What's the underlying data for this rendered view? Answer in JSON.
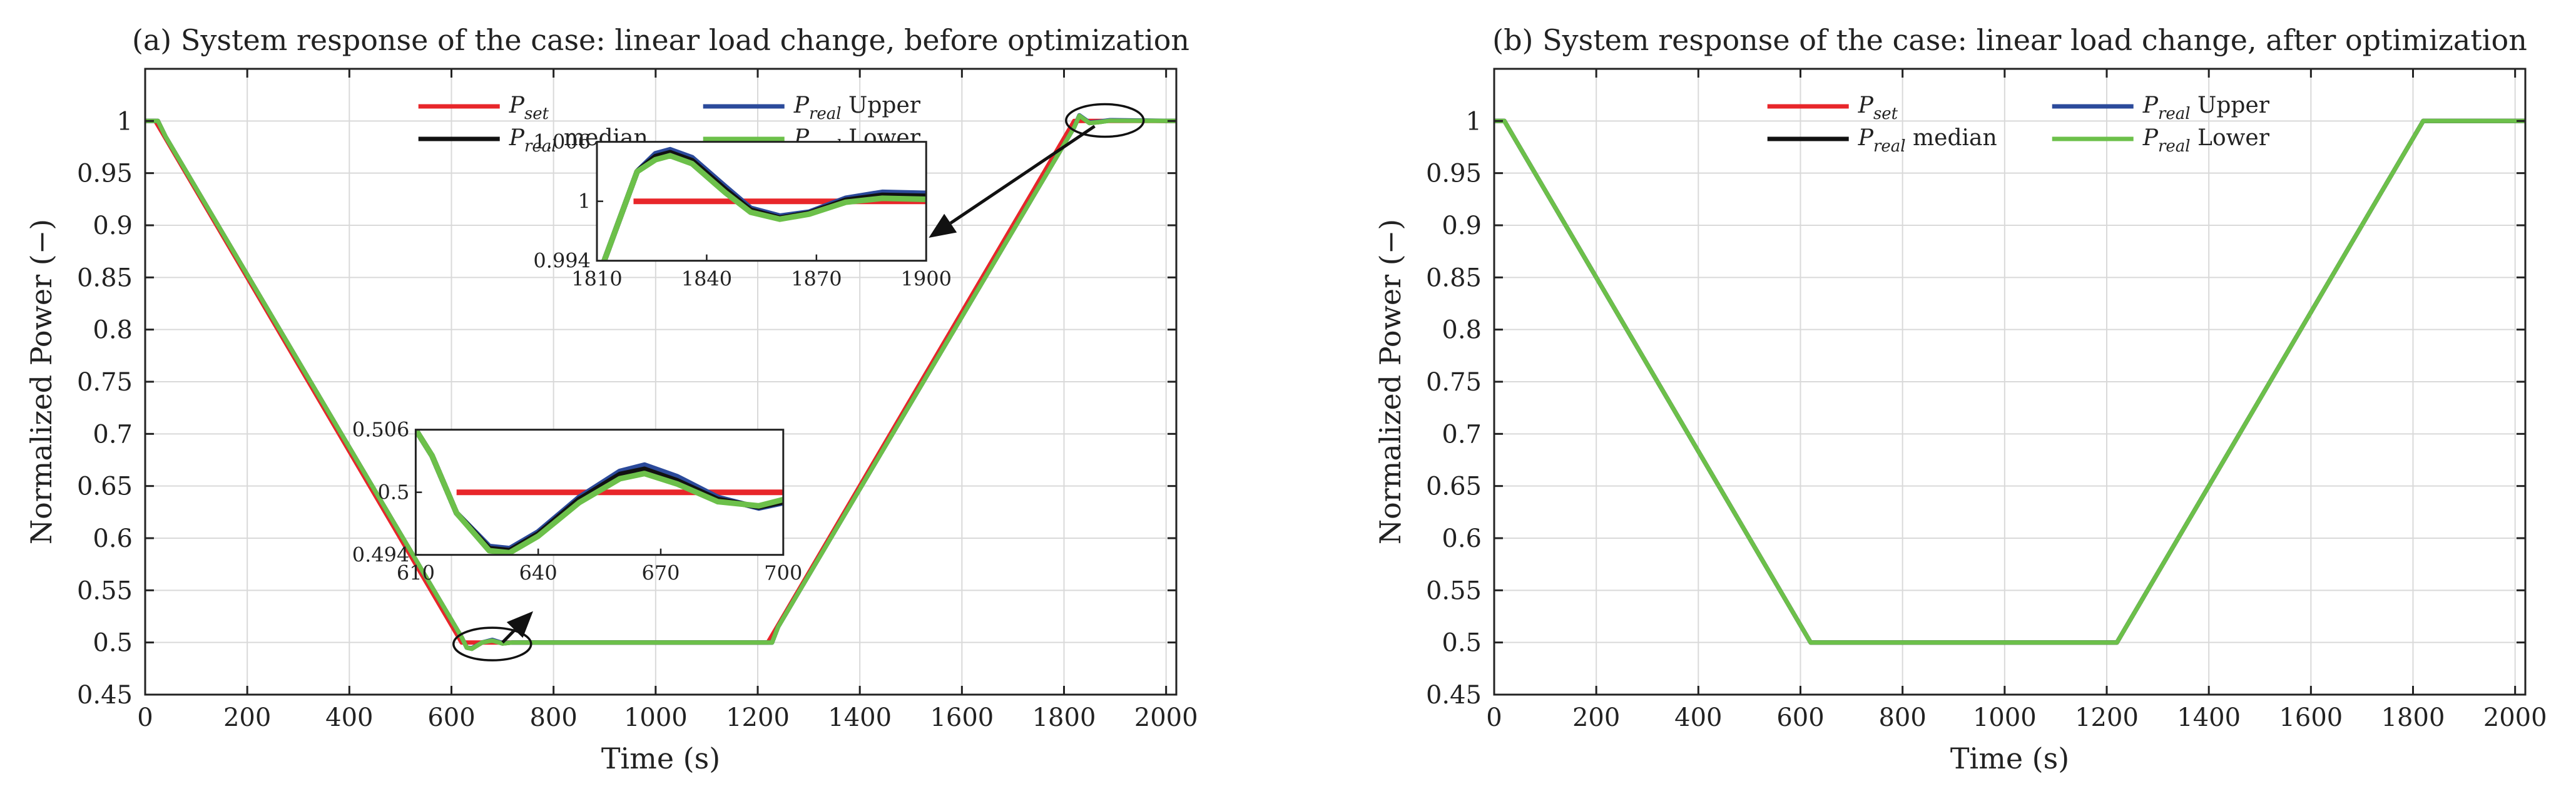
{
  "colors": {
    "set": "#e8262a",
    "median": "#111111",
    "upper": "#2b4a9b",
    "lower": "#6cc04a",
    "grid": "#d9d9d9"
  },
  "legend": {
    "set": {
      "sym": "P",
      "sub": "set",
      "suffix": ""
    },
    "upper": {
      "sym": "P",
      "sub": "real",
      "suffix": "Upper"
    },
    "median": {
      "sym": "P",
      "sub": "real",
      "suffix": "median"
    },
    "lower": {
      "sym": "P",
      "sub": "real",
      "suffix": "Lower"
    }
  },
  "chart_data": [
    {
      "id": "a",
      "type": "line",
      "title": "(a) System response of the case: linear load change, before optimization",
      "xlabel": "Time (s)",
      "ylabel": "Normalized Power (−)",
      "xlim": [
        0,
        2020
      ],
      "ylim": [
        0.45,
        1.05
      ],
      "xticks": [
        0,
        200,
        400,
        600,
        800,
        1000,
        1200,
        1400,
        1600,
        1800,
        2000
      ],
      "yticks": [
        0.45,
        0.5,
        0.55,
        0.6,
        0.65,
        0.7,
        0.75,
        0.8,
        0.85,
        0.9,
        0.95,
        1
      ],
      "grid": true,
      "legend_position": "top-center",
      "series": [
        {
          "name": "P_set",
          "color_key": "set",
          "x": [
            0,
            20,
            620,
            1220,
            1820,
            2020
          ],
          "y": [
            1,
            1,
            0.5,
            0.5,
            1,
            1
          ]
        },
        {
          "name": "P_real median",
          "color_key": "median",
          "x": [
            0,
            25,
            40,
            620,
            630,
            640,
            660,
            680,
            700,
            720,
            1220,
            1228,
            1240,
            1820,
            1830,
            1850,
            1870,
            1890,
            2020
          ],
          "y": [
            1,
            1,
            0.985,
            0.505,
            0.495,
            0.494,
            0.5,
            0.502,
            0.499,
            0.5,
            0.5,
            0.5,
            0.515,
            0.994,
            1.005,
            0.998,
            0.999,
            1.0005,
            1
          ]
        },
        {
          "name": "P_real Upper",
          "color_key": "upper",
          "x": [
            0,
            25,
            40,
            620,
            630,
            640,
            660,
            680,
            700,
            720,
            1220,
            1228,
            1240,
            1820,
            1830,
            1850,
            1870,
            1890,
            2020
          ],
          "y": [
            1,
            1,
            0.985,
            0.505,
            0.495,
            0.4945,
            0.5,
            0.5025,
            0.4995,
            0.5,
            0.5,
            0.5,
            0.515,
            0.994,
            1.0055,
            0.9985,
            0.9995,
            1.0008,
            1
          ]
        },
        {
          "name": "P_real Lower",
          "color_key": "lower",
          "x": [
            0,
            25,
            40,
            620,
            630,
            640,
            660,
            680,
            700,
            720,
            1220,
            1228,
            1240,
            1820,
            1830,
            1850,
            1870,
            1890,
            2020
          ],
          "y": [
            1,
            1,
            0.985,
            0.505,
            0.495,
            0.494,
            0.5,
            0.5018,
            0.499,
            0.5,
            0.5,
            0.5,
            0.515,
            0.994,
            1.005,
            0.998,
            0.999,
            1.0003,
            1
          ]
        }
      ],
      "annotations": [
        {
          "type": "ellipse",
          "cx": 680,
          "cy": 0.4985
        },
        {
          "type": "ellipse",
          "cx": 1880,
          "cy": 1.0005
        },
        {
          "type": "arrow",
          "from": [
            700,
            0.5
          ],
          "to": [
            760,
            0.53
          ]
        },
        {
          "type": "arrow",
          "from": [
            1860,
            0.995
          ],
          "to": [
            1535,
            0.888
          ]
        }
      ],
      "insets": [
        {
          "id": "inset-lower",
          "anchor_data": [
            530,
            0.704
          ],
          "anchor_end": [
            1250,
            0.584
          ],
          "xlim": [
            610,
            700
          ],
          "ylim": [
            0.494,
            0.506
          ],
          "xticks": [
            610,
            640,
            670,
            700
          ],
          "yticks": [
            0.494,
            0.5,
            0.506
          ],
          "ytick_labels": [
            "0.494",
            "0.5",
            "0.506"
          ],
          "series": [
            {
              "color_key": "set",
              "x": [
                620,
                700
              ],
              "y": [
                0.5,
                0.5
              ]
            },
            {
              "color_key": "upper",
              "x": [
                610,
                614,
                620,
                628,
                633,
                640,
                650,
                660,
                666,
                674,
                684,
                694,
                700
              ],
              "y": [
                0.506,
                0.5035,
                0.498,
                0.4948,
                0.4946,
                0.4962,
                0.4995,
                0.502,
                0.5026,
                0.5015,
                0.4995,
                0.4985,
                0.499
              ]
            },
            {
              "color_key": "median",
              "x": [
                610,
                614,
                620,
                628,
                633,
                640,
                650,
                660,
                666,
                674,
                684,
                694,
                700
              ],
              "y": [
                0.506,
                0.5035,
                0.498,
                0.4946,
                0.4944,
                0.496,
                0.4993,
                0.5017,
                0.5022,
                0.5011,
                0.4993,
                0.4986,
                0.4991
              ]
            },
            {
              "color_key": "lower",
              "x": [
                610,
                614,
                620,
                628,
                633,
                640,
                650,
                660,
                666,
                674,
                684,
                694,
                700
              ],
              "y": [
                0.506,
                0.5035,
                0.498,
                0.4944,
                0.4942,
                0.4958,
                0.499,
                0.5013,
                0.5018,
                0.5008,
                0.4991,
                0.4987,
                0.4993
              ]
            }
          ]
        },
        {
          "id": "inset-upper",
          "anchor_data": [
            885,
            0.98
          ],
          "anchor_end": [
            1530,
            0.866
          ],
          "xlim": [
            1810,
            1900
          ],
          "ylim": [
            0.994,
            1.006
          ],
          "xticks": [
            1810,
            1840,
            1870,
            1900
          ],
          "yticks": [
            0.994,
            1,
            1.006
          ],
          "ytick_labels": [
            "0.994",
            "1",
            "1.006"
          ],
          "series": [
            {
              "color_key": "set",
              "x": [
                1820,
                1900
              ],
              "y": [
                1,
                1
              ]
            },
            {
              "color_key": "upper",
              "x": [
                1812,
                1816,
                1821,
                1826,
                1830,
                1836,
                1845,
                1852,
                1860,
                1868,
                1878,
                1888,
                1900
              ],
              "y": [
                0.994,
                0.998,
                1.003,
                1.0048,
                1.0052,
                1.0044,
                1.0015,
                0.9993,
                0.9985,
                0.9989,
                1.0003,
                1.0009,
                1.0008
              ]
            },
            {
              "color_key": "median",
              "x": [
                1812,
                1816,
                1821,
                1826,
                1830,
                1836,
                1845,
                1852,
                1860,
                1868,
                1878,
                1888,
                1900
              ],
              "y": [
                0.994,
                0.998,
                1.003,
                1.0045,
                1.0049,
                1.0041,
                1.0012,
                0.9991,
                0.9983,
                0.9988,
                1.0001,
                1.0006,
                1.0005
              ]
            },
            {
              "color_key": "lower",
              "x": [
                1812,
                1816,
                1821,
                1826,
                1830,
                1836,
                1845,
                1852,
                1860,
                1868,
                1878,
                1888,
                1900
              ],
              "y": [
                0.994,
                0.998,
                1.003,
                1.0042,
                1.0046,
                1.0038,
                1.0009,
                0.9989,
                0.9982,
                0.9987,
                0.9999,
                1.0003,
                1.0002
              ]
            }
          ]
        }
      ]
    },
    {
      "id": "b",
      "type": "line",
      "title": "(b) System response of the case: linear load change, after optimization",
      "xlabel": "Time (s)",
      "ylabel": "Normalized Power (−)",
      "xlim": [
        0,
        2020
      ],
      "ylim": [
        0.45,
        1.05
      ],
      "xticks": [
        0,
        200,
        400,
        600,
        800,
        1000,
        1200,
        1400,
        1600,
        1800,
        2000
      ],
      "yticks": [
        0.45,
        0.5,
        0.55,
        0.6,
        0.65,
        0.7,
        0.75,
        0.8,
        0.85,
        0.9,
        0.95,
        1
      ],
      "grid": true,
      "legend_position": "top-center",
      "series": [
        {
          "name": "P_set",
          "color_key": "set",
          "x": [
            0,
            20,
            620,
            1220,
            1820,
            2020
          ],
          "y": [
            1,
            1,
            0.5,
            0.5,
            1,
            1
          ]
        },
        {
          "name": "P_real median",
          "color_key": "median",
          "x": [
            0,
            20,
            620,
            1220,
            1820,
            2020
          ],
          "y": [
            1,
            1,
            0.5,
            0.5,
            1,
            1
          ]
        },
        {
          "name": "P_real Upper",
          "color_key": "upper",
          "x": [
            0,
            20,
            620,
            1220,
            1820,
            2020
          ],
          "y": [
            1,
            1,
            0.5,
            0.5,
            1,
            1
          ]
        },
        {
          "name": "P_real Lower",
          "color_key": "lower",
          "x": [
            0,
            20,
            620,
            1220,
            1820,
            2020
          ],
          "y": [
            1,
            1,
            0.5,
            0.5,
            1,
            1
          ]
        }
      ]
    }
  ]
}
